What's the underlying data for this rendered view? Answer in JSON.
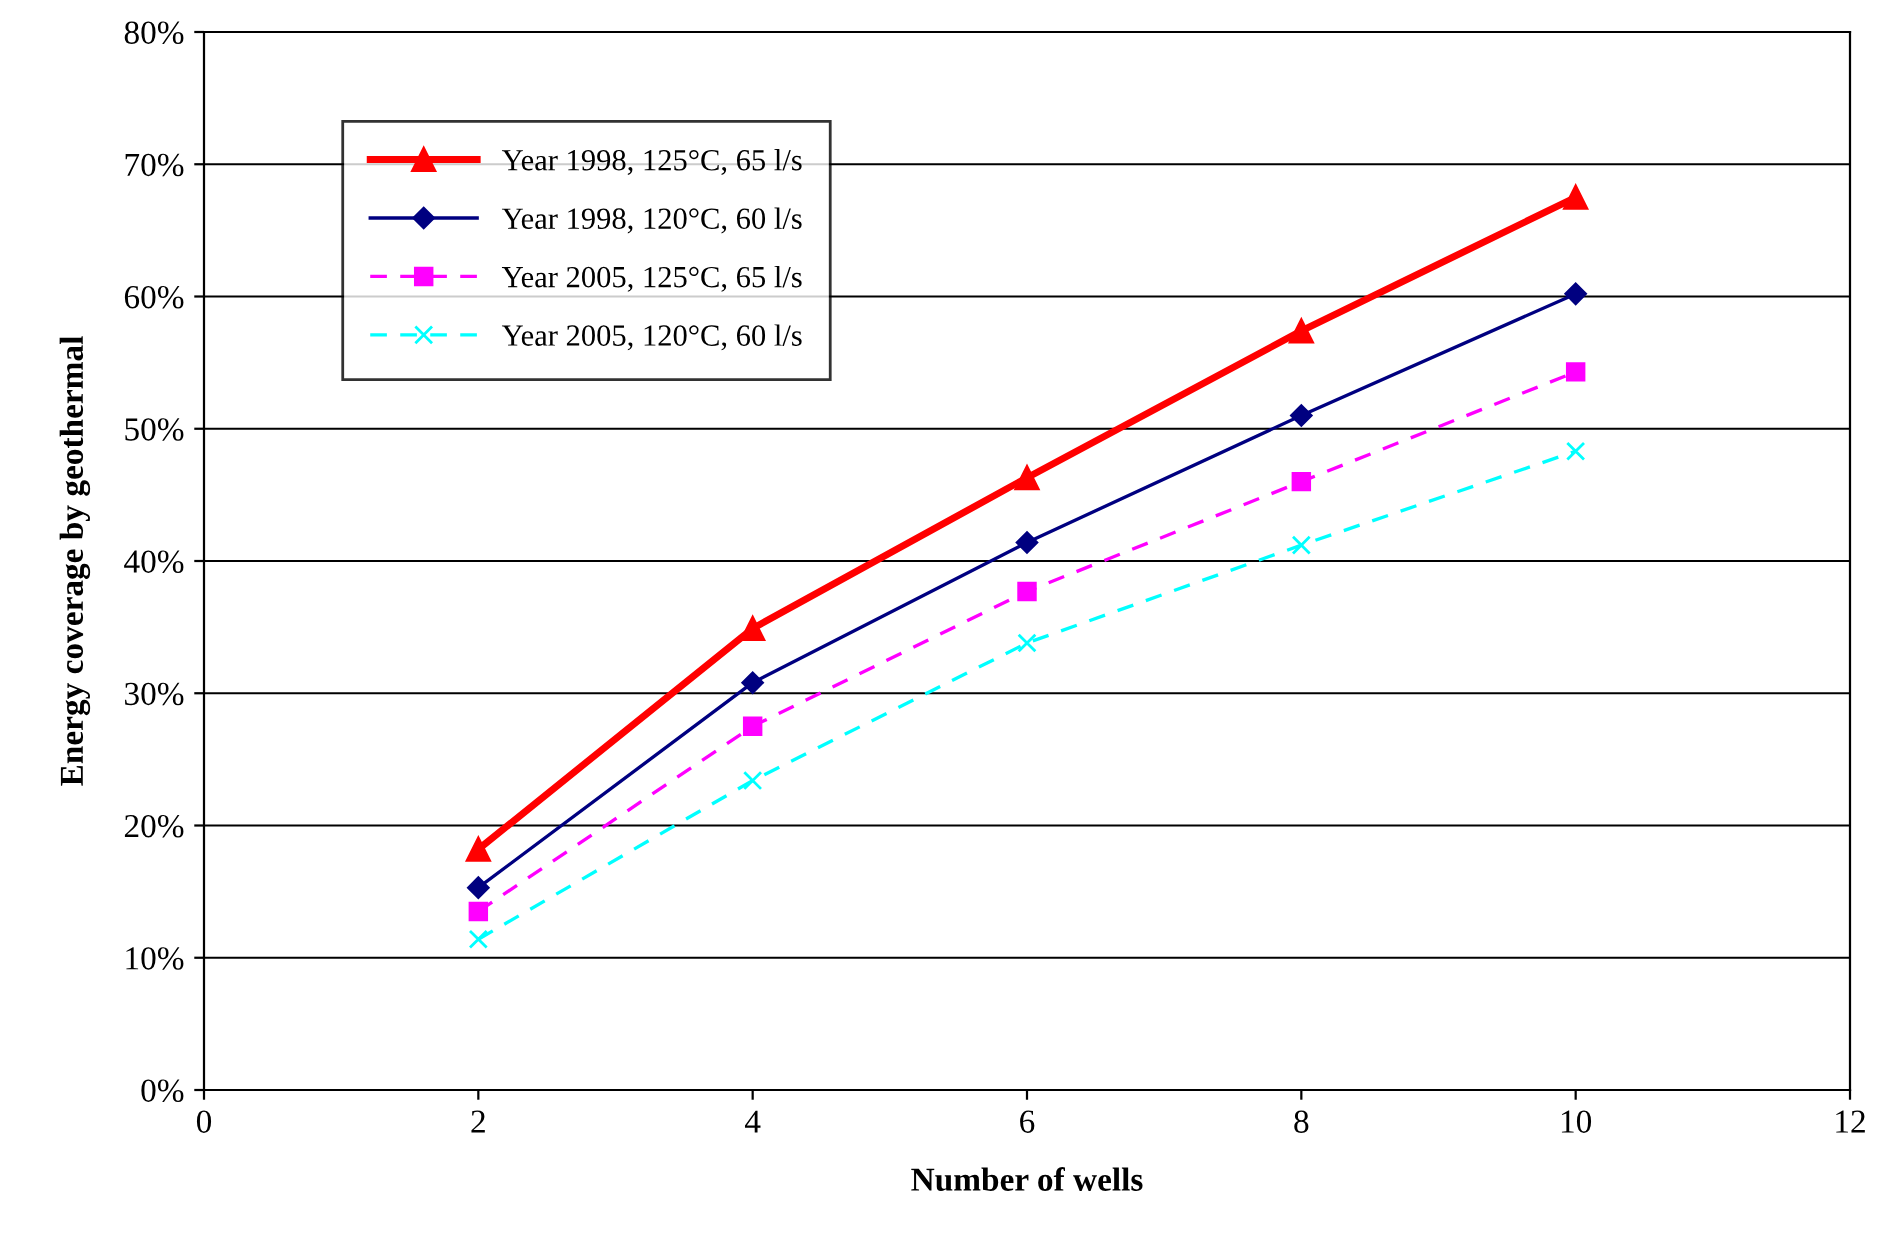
{
  "chart_data": {
    "type": "line",
    "xlabel": "Number of wells",
    "ylabel": "Energy coverage by geothermal",
    "x": [
      2,
      4,
      6,
      8,
      10
    ],
    "series": [
      {
        "name": "Year 1998, 125°C, 65 l/s",
        "color": "#ff0000",
        "marker": "triangle",
        "line_style": "solid",
        "values": [
          18.2,
          34.9,
          46.3,
          57.4,
          67.5
        ]
      },
      {
        "name": "Year 1998, 120°C, 60 l/s",
        "color": "#000080",
        "marker": "diamond",
        "line_style": "solid",
        "values": [
          15.3,
          30.8,
          41.4,
          51.0,
          60.2
        ]
      },
      {
        "name": "Year 2005, 125°C, 65 l/s",
        "color": "#ff00ff",
        "marker": "square",
        "line_style": "dashed",
        "values": [
          13.5,
          27.5,
          37.7,
          46.0,
          54.3
        ]
      },
      {
        "name": "Year 2005, 120°C, 60 l/s",
        "color": "#00ffff",
        "marker": "cross",
        "line_style": "dashed",
        "values": [
          11.4,
          23.4,
          33.8,
          41.2,
          48.3
        ]
      }
    ],
    "xlim": [
      0,
      12
    ],
    "xticks": [
      0,
      2,
      4,
      6,
      8,
      10,
      12
    ],
    "ylim": [
      0,
      80
    ],
    "yticks": [
      {
        "value": 0,
        "label": "0%"
      },
      {
        "value": 10,
        "label": "10%"
      },
      {
        "value": 20,
        "label": "20%"
      },
      {
        "value": 30,
        "label": "30%"
      },
      {
        "value": 40,
        "label": "40%"
      },
      {
        "value": 50,
        "label": "50%"
      },
      {
        "value": 60,
        "label": "60%"
      },
      {
        "value": 70,
        "label": "70%"
      },
      {
        "value": 80,
        "label": "80%"
      }
    ],
    "grid": "y",
    "legend": "top left"
  }
}
